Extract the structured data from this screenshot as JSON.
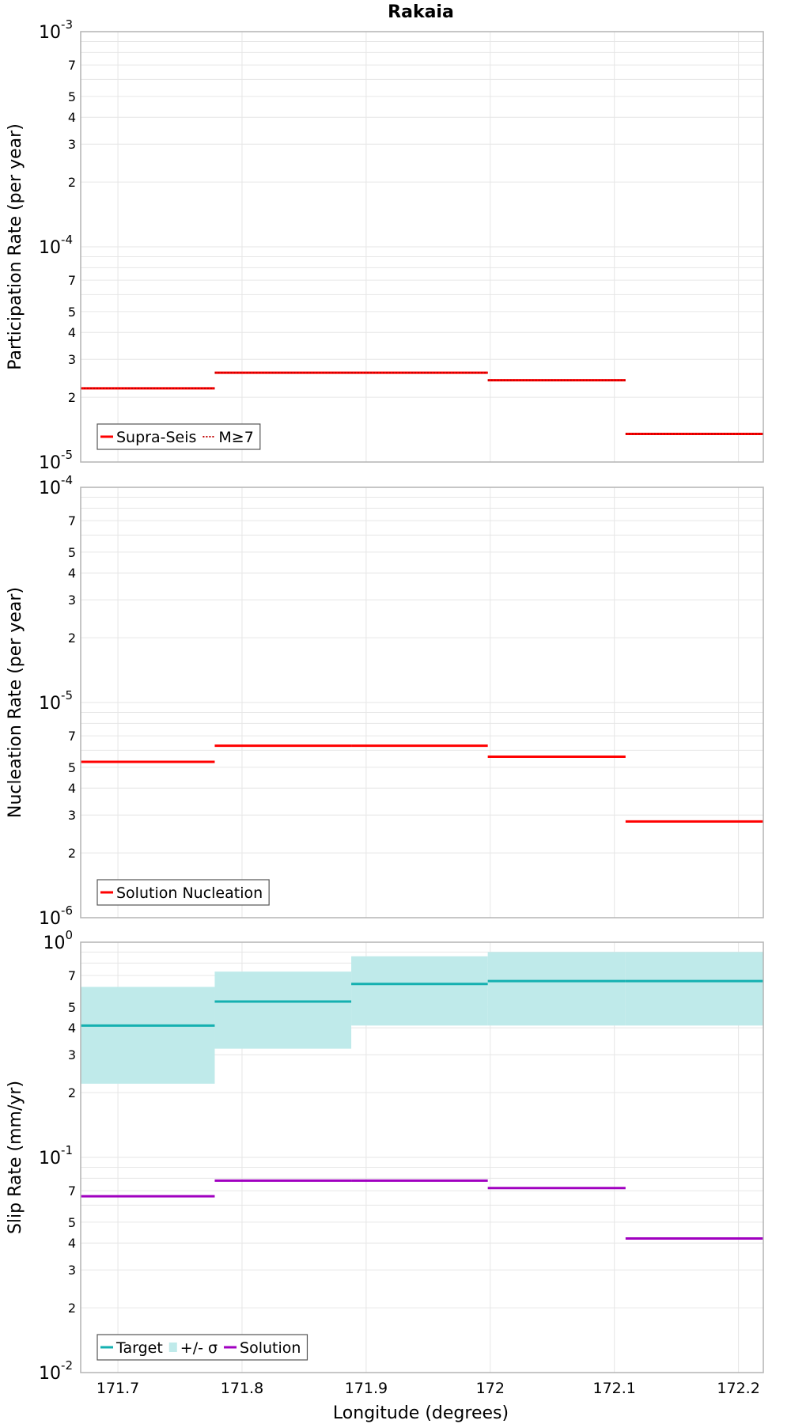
{
  "title": "Rakaia",
  "xlabel": "Longitude (degrees)",
  "x_ticks": [
    "171.7",
    "171.8",
    "171.9",
    "172",
    "172.1",
    "172.2"
  ],
  "x_tick_values": [
    171.7,
    171.8,
    171.9,
    172.0,
    172.1,
    172.2
  ],
  "x_range": [
    171.67,
    172.22
  ],
  "colors": {
    "red": "#ff0000",
    "teal": "#14b0b0",
    "band": "#bfeaea",
    "purple": "#a000c0",
    "grid": "#e6e6e6",
    "frame": "#b4b4b4"
  },
  "chart_data": [
    {
      "type": "line",
      "step": true,
      "ylabel": "Participation Rate (per year)",
      "yscale": "log",
      "ylim": [
        1e-05,
        0.001
      ],
      "decade_labels": [
        {
          "base": "10",
          "exp": "-5"
        },
        {
          "base": "10",
          "exp": "-4"
        },
        {
          "base": "10",
          "exp": "-3"
        }
      ],
      "minor_tick_labels": [
        "2",
        "3",
        "4",
        "5",
        "7"
      ],
      "bins": [
        [
          171.67,
          171.778
        ],
        [
          171.778,
          171.888
        ],
        [
          171.888,
          171.998
        ],
        [
          171.998,
          172.109
        ],
        [
          172.109,
          172.22
        ]
      ],
      "series": [
        {
          "name": "Supra-Seis",
          "color": "#ff0000",
          "style": "solid",
          "values": [
            2.2e-05,
            2.6e-05,
            2.6e-05,
            2.4e-05,
            1.35e-05
          ]
        },
        {
          "name": "M≥7",
          "color": "#ff0000",
          "style": "dotted",
          "values": [
            2.2e-05,
            2.6e-05,
            2.6e-05,
            2.4e-05,
            1.35e-05
          ]
        }
      ],
      "legend": "bottom-left"
    },
    {
      "type": "line",
      "step": true,
      "ylabel": "Nucleation Rate (per year)",
      "yscale": "log",
      "ylim": [
        1e-06,
        0.0001
      ],
      "decade_labels": [
        {
          "base": "10",
          "exp": "-6"
        },
        {
          "base": "10",
          "exp": "-5"
        },
        {
          "base": "10",
          "exp": "-4"
        }
      ],
      "minor_tick_labels": [
        "2",
        "3",
        "4",
        "5",
        "7"
      ],
      "bins": [
        [
          171.67,
          171.778
        ],
        [
          171.778,
          171.888
        ],
        [
          171.888,
          171.998
        ],
        [
          171.998,
          172.109
        ],
        [
          172.109,
          172.22
        ]
      ],
      "series": [
        {
          "name": "Solution Nucleation",
          "color": "#ff0000",
          "style": "solid",
          "values": [
            5.3e-06,
            6.3e-06,
            6.3e-06,
            5.6e-06,
            2.8e-06
          ]
        }
      ],
      "legend": "bottom-left"
    },
    {
      "type": "line",
      "step": true,
      "ylabel": "Slip Rate (mm/yr)",
      "yscale": "log",
      "ylim": [
        0.01,
        1
      ],
      "decade_labels": [
        {
          "base": "10",
          "exp": "-2"
        },
        {
          "base": "10",
          "exp": "-1"
        },
        {
          "base": "10",
          "exp": "0"
        }
      ],
      "minor_tick_labels": [
        "2",
        "3",
        "4",
        "5",
        "7"
      ],
      "bins": [
        [
          171.67,
          171.778
        ],
        [
          171.778,
          171.888
        ],
        [
          171.888,
          171.998
        ],
        [
          171.998,
          172.109
        ],
        [
          172.109,
          172.22
        ]
      ],
      "band": {
        "name": "+/- σ",
        "color": "#bfeaea",
        "lower": [
          0.22,
          0.32,
          0.41,
          0.41,
          0.41
        ],
        "upper": [
          0.62,
          0.73,
          0.86,
          0.9,
          0.9
        ]
      },
      "series": [
        {
          "name": "Target",
          "color": "#14b0b0",
          "style": "solid",
          "values": [
            0.41,
            0.53,
            0.64,
            0.66,
            0.66
          ]
        },
        {
          "name": "Solution",
          "color": "#a000c0",
          "style": "solid",
          "values": [
            0.066,
            0.078,
            0.078,
            0.072,
            0.042
          ]
        }
      ],
      "legend": "bottom-left"
    }
  ]
}
